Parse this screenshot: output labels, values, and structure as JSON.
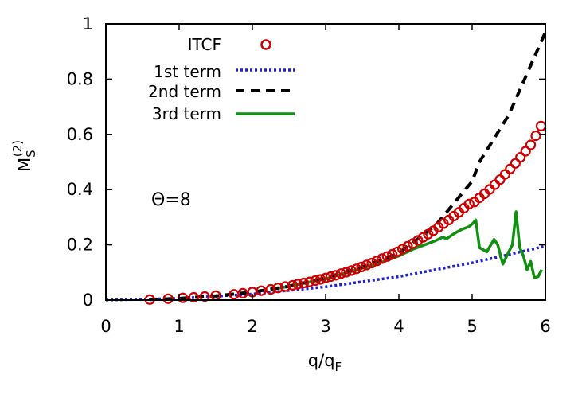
{
  "chart_data": {
    "type": "scatter",
    "title": "",
    "xlabel": {
      "main": "q/q",
      "sub": "F"
    },
    "ylabel": {
      "main": "M",
      "sub": "S",
      "sup": "(2)"
    },
    "xlim": [
      0,
      6
    ],
    "ylim": [
      0,
      1
    ],
    "xticks": [
      "0",
      "1",
      "2",
      "3",
      "4",
      "5",
      "6"
    ],
    "yticks": [
      "0",
      "0.2",
      "0.4",
      "0.6",
      "0.8",
      "1"
    ],
    "annotation": "Θ=8",
    "legend_position": "top-left",
    "series": [
      {
        "name": "ITCF",
        "style": "circles",
        "color": "#cc0000",
        "x": [
          0.6,
          0.85,
          1.05,
          1.2,
          1.35,
          1.5,
          1.75,
          1.87,
          2.0,
          2.12,
          2.25,
          2.35,
          2.45,
          2.55,
          2.62,
          2.7,
          2.78,
          2.86,
          2.93,
          3.0,
          3.07,
          3.14,
          3.21,
          3.28,
          3.35,
          3.42,
          3.49,
          3.56,
          3.63,
          3.7,
          3.77,
          3.84,
          3.91,
          3.98,
          4.05,
          4.12,
          4.19,
          4.26,
          4.33,
          4.4,
          4.47,
          4.54,
          4.61,
          4.68,
          4.75,
          4.82,
          4.89,
          4.96,
          5.03,
          5.1,
          5.17,
          5.24,
          5.31,
          5.38,
          5.45,
          5.52,
          5.59,
          5.66,
          5.73,
          5.8,
          5.87,
          5.94
        ],
        "y": [
          0.002,
          0.005,
          0.008,
          0.01,
          0.013,
          0.016,
          0.021,
          0.025,
          0.029,
          0.034,
          0.039,
          0.044,
          0.049,
          0.054,
          0.058,
          0.062,
          0.066,
          0.071,
          0.075,
          0.08,
          0.085,
          0.09,
          0.096,
          0.101,
          0.107,
          0.113,
          0.12,
          0.127,
          0.134,
          0.142,
          0.15,
          0.158,
          0.166,
          0.175,
          0.185,
          0.195,
          0.205,
          0.216,
          0.227,
          0.239,
          0.251,
          0.264,
          0.277,
          0.29,
          0.304,
          0.318,
          0.333,
          0.348,
          0.355,
          0.37,
          0.385,
          0.401,
          0.418,
          0.436,
          0.455,
          0.475,
          0.495,
          0.517,
          0.539,
          0.562,
          0.595,
          0.63
        ]
      },
      {
        "name": "1st term",
        "style": "dotted",
        "color": "#2222cc",
        "x": [
          0,
          1,
          2,
          3,
          4,
          5,
          6
        ],
        "y": [
          0,
          0.006,
          0.022,
          0.048,
          0.085,
          0.135,
          0.195
        ]
      },
      {
        "name": "2nd term",
        "style": "dashed",
        "color": "#000000",
        "x": [
          0.6,
          1.0,
          1.5,
          2.0,
          2.5,
          3.0,
          3.5,
          4.0,
          4.5,
          5.0,
          5.1,
          5.5,
          6.0
        ],
        "y": [
          0.002,
          0.006,
          0.015,
          0.029,
          0.05,
          0.08,
          0.12,
          0.17,
          0.27,
          0.43,
          0.5,
          0.67,
          0.97
        ]
      },
      {
        "name": "3rd term",
        "style": "solid",
        "color": "#109010",
        "x": [
          2.3,
          2.5,
          3.0,
          3.5,
          3.8,
          4.0,
          4.2,
          4.4,
          4.5,
          4.6,
          4.65,
          4.75,
          4.85,
          4.95,
          5.0,
          5.05,
          5.1,
          5.2,
          5.3,
          5.35,
          5.42,
          5.5,
          5.55,
          5.6,
          5.65,
          5.7,
          5.75,
          5.8,
          5.85,
          5.9,
          5.95
        ],
        "y": [
          0.04,
          0.05,
          0.077,
          0.115,
          0.14,
          0.16,
          0.185,
          0.205,
          0.215,
          0.228,
          0.222,
          0.24,
          0.255,
          0.265,
          0.275,
          0.29,
          0.19,
          0.175,
          0.22,
          0.2,
          0.13,
          0.175,
          0.2,
          0.32,
          0.19,
          0.16,
          0.11,
          0.14,
          0.08,
          0.085,
          0.11
        ]
      }
    ],
    "reference_line": {
      "y": 0,
      "style": "dotted",
      "color": "#555555"
    }
  }
}
